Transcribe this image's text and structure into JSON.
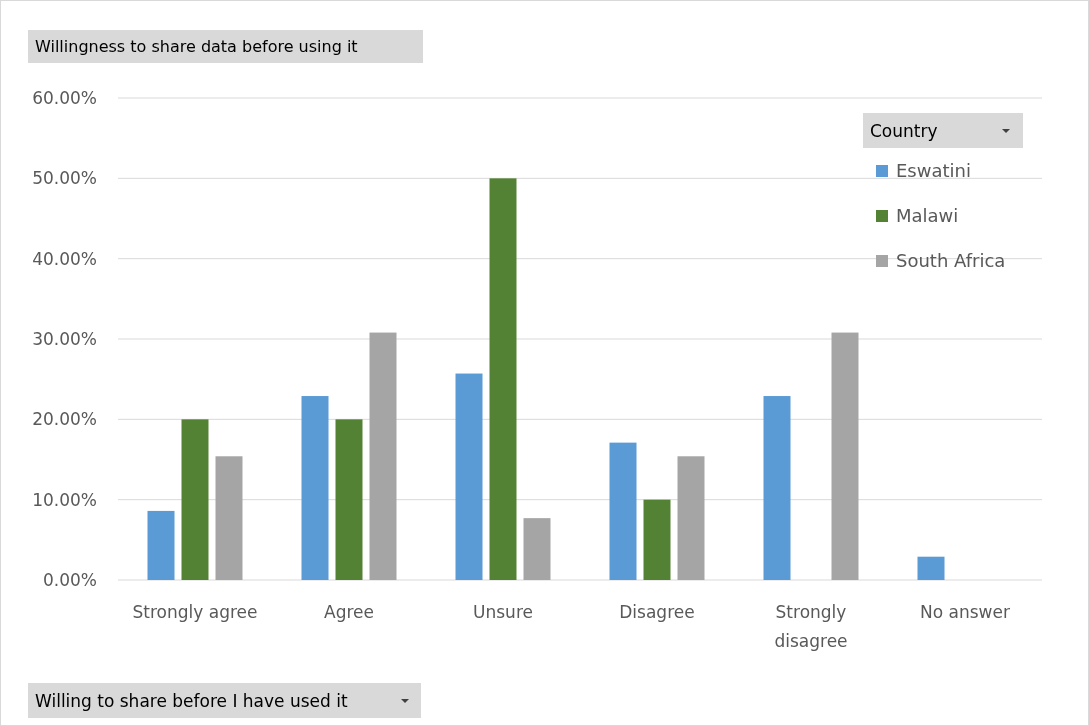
{
  "chart_data": {
    "type": "bar",
    "title": "Willingness to share data before using it",
    "legend_title": "Country",
    "annotations": [
      "Willing to share before I have used it"
    ],
    "categories": [
      "Strongly agree",
      "Agree",
      "Unsure",
      "Disagree",
      "Strongly disagree",
      "No answer"
    ],
    "series": [
      {
        "name": "Eswatini",
        "color": "#5b9bd5",
        "values": [
          8.6,
          22.9,
          25.7,
          17.1,
          22.9,
          2.9
        ]
      },
      {
        "name": "Malawi",
        "color": "#548235",
        "values": [
          20,
          20,
          50,
          10,
          null,
          null
        ]
      },
      {
        "name": "South Africa",
        "color": "#a5a5a5",
        "values": [
          15.4,
          30.8,
          7.7,
          15.4,
          30.8,
          null
        ]
      }
    ],
    "ylim": [
      0,
      60
    ],
    "yticks": [
      {
        "value": 0,
        "label": "0.00%"
      },
      {
        "value": 10,
        "label": "10.00%"
      },
      {
        "value": 20,
        "label": "20.00%"
      },
      {
        "value": 30,
        "label": "30.00%"
      },
      {
        "value": 40,
        "label": "40.00%"
      },
      {
        "value": 50,
        "label": "50.00%"
      },
      {
        "value": 60,
        "label": "60.00%"
      }
    ],
    "grid": "y",
    "legend": "top right"
  }
}
